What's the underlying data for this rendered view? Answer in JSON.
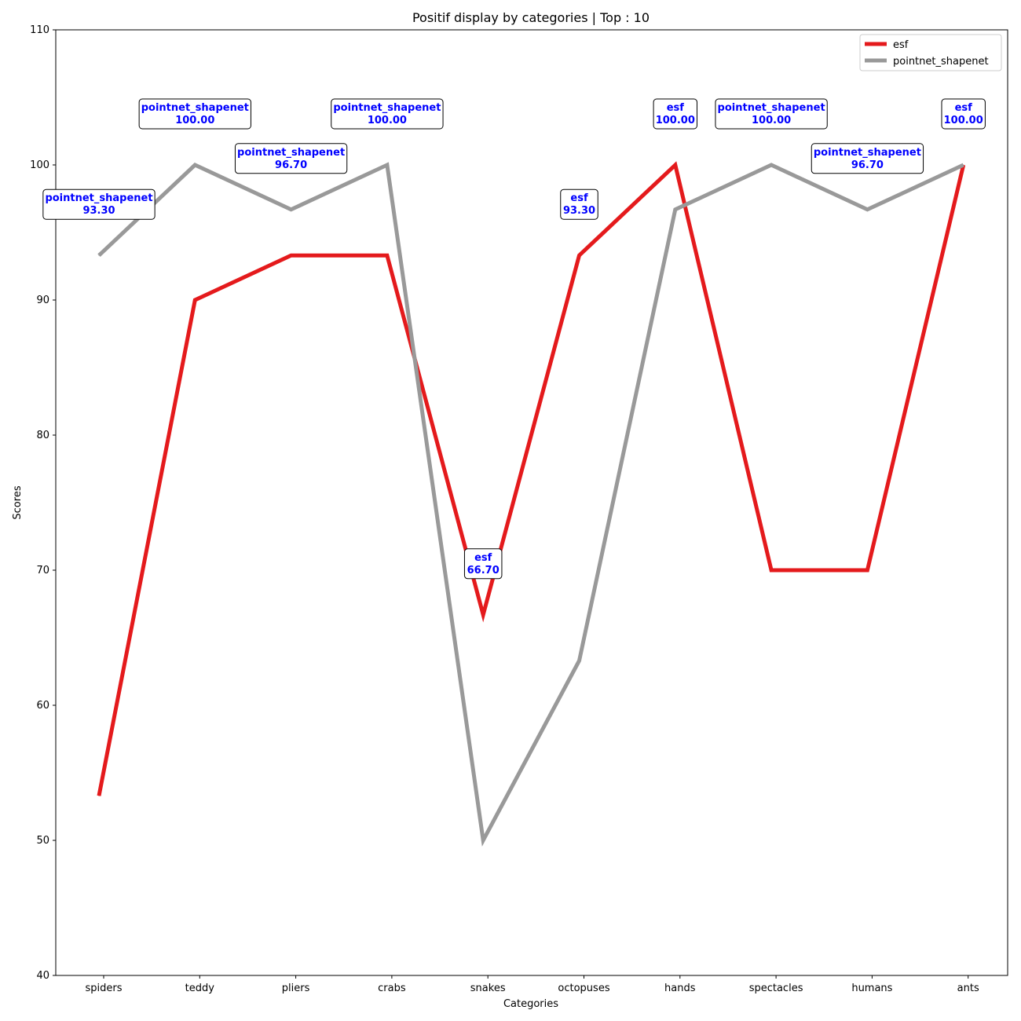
{
  "chart_data": {
    "type": "line",
    "title": "Positif display by categories | Top : 10",
    "xlabel": "Categories",
    "ylabel": "Scores",
    "ylim": [
      40,
      110
    ],
    "yticks": [
      40,
      50,
      60,
      70,
      80,
      90,
      100,
      110
    ],
    "categories": [
      "spiders",
      "teddy",
      "pliers",
      "crabs",
      "snakes",
      "octopuses",
      "hands",
      "spectacles",
      "humans",
      "ants"
    ],
    "series": [
      {
        "name": "esf",
        "color": "#e41a1c",
        "values": [
          53.3,
          90.0,
          93.3,
          93.3,
          66.7,
          93.3,
          100.0,
          70.0,
          70.0,
          100.0
        ]
      },
      {
        "name": "pointnet_shapenet",
        "color": "#999999",
        "values": [
          93.3,
          100.0,
          96.7,
          100.0,
          50.0,
          63.3,
          96.7,
          100.0,
          96.7,
          100.0
        ]
      }
    ],
    "annotations": [
      {
        "category_index": 0,
        "series": "pointnet_shapenet",
        "label": "pointnet_shapenet",
        "value": "93.30",
        "level": 1
      },
      {
        "category_index": 1,
        "series": "pointnet_shapenet",
        "label": "pointnet_shapenet",
        "value": "100.00",
        "level": 1
      },
      {
        "category_index": 2,
        "series": "pointnet_shapenet",
        "label": "pointnet_shapenet",
        "value": "96.70",
        "level": 1
      },
      {
        "category_index": 3,
        "series": "pointnet_shapenet",
        "label": "pointnet_shapenet",
        "value": "100.00",
        "level": 1
      },
      {
        "category_index": 4,
        "series": "esf",
        "label": "esf",
        "value": "66.70",
        "level": 1
      },
      {
        "category_index": 5,
        "series": "esf",
        "label": "esf",
        "value": "93.30",
        "level": 1
      },
      {
        "category_index": 6,
        "series": "esf",
        "label": "esf",
        "value": "100.00",
        "level": 1
      },
      {
        "category_index": 7,
        "series": "pointnet_shapenet",
        "label": "pointnet_shapenet",
        "value": "100.00",
        "level": 1
      },
      {
        "category_index": 8,
        "series": "pointnet_shapenet",
        "label": "pointnet_shapenet",
        "value": "96.70",
        "level": 1
      },
      {
        "category_index": 9,
        "series": "esf",
        "label": "esf",
        "value": "100.00",
        "level": 1
      }
    ],
    "legend_position": "top-right",
    "grid": false
  }
}
